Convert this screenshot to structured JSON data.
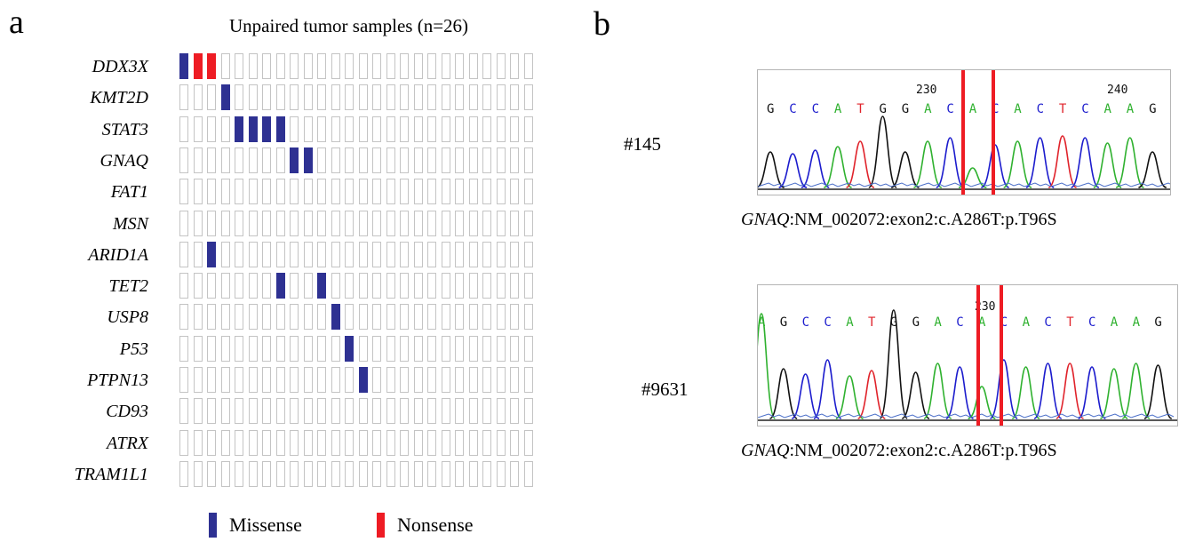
{
  "panel_a": {
    "letter": "a",
    "title": "Unpaired tumor samples (n=26)",
    "sample_count": 26,
    "genes": [
      "DDX3X",
      "KMT2D",
      "STAT3",
      "GNAQ",
      "FAT1",
      "MSN",
      "ARID1A",
      "TET2",
      "USP8",
      "P53",
      "PTPN13",
      "CD93",
      "ATRX",
      "TRAM1L1"
    ],
    "mutations": [
      {
        "gene": "DDX3X",
        "sample": 1,
        "type": "Missense"
      },
      {
        "gene": "DDX3X",
        "sample": 2,
        "type": "Nonsense"
      },
      {
        "gene": "DDX3X",
        "sample": 3,
        "type": "Nonsense"
      },
      {
        "gene": "KMT2D",
        "sample": 4,
        "type": "Missense"
      },
      {
        "gene": "STAT3",
        "sample": 5,
        "type": "Missense"
      },
      {
        "gene": "STAT3",
        "sample": 6,
        "type": "Missense"
      },
      {
        "gene": "STAT3",
        "sample": 7,
        "type": "Missense"
      },
      {
        "gene": "STAT3",
        "sample": 8,
        "type": "Missense"
      },
      {
        "gene": "GNAQ",
        "sample": 9,
        "type": "Missense"
      },
      {
        "gene": "GNAQ",
        "sample": 10,
        "type": "Missense"
      },
      {
        "gene": "ARID1A",
        "sample": 3,
        "type": "Missense"
      },
      {
        "gene": "TET2",
        "sample": 8,
        "type": "Missense"
      },
      {
        "gene": "TET2",
        "sample": 11,
        "type": "Missense"
      },
      {
        "gene": "USP8",
        "sample": 12,
        "type": "Missense"
      },
      {
        "gene": "P53",
        "sample": 13,
        "type": "Missense"
      },
      {
        "gene": "PTPN13",
        "sample": 14,
        "type": "Missense"
      }
    ],
    "legend": [
      {
        "label": "Missense",
        "color": "#2e3192"
      },
      {
        "label": "Nonsense",
        "color": "#ee1c24"
      }
    ],
    "empty_cell_border_color": "#c4c4c4"
  },
  "panel_b": {
    "letter": "b",
    "traces": [
      {
        "sample_id": "#145",
        "bases": "GCCATGGACACACTCAAG",
        "position_labels": [
          "230",
          "240"
        ],
        "caption_gene": "GNAQ",
        "caption_rest": ":NM_002072:exon2:c.A286T:p.T96S"
      },
      {
        "sample_id": "#9631",
        "bases": "AGCCATGGACACACTCAAG",
        "position_labels": [
          "230"
        ],
        "caption_gene": "GNAQ",
        "caption_rest": ":NM_002072:exon2:c.A286T:p.T96S"
      }
    ],
    "highlight_color": "#ee1c24",
    "base_colors": {
      "A": "#2fb12f",
      "C": "#1c1ccd",
      "G": "#111111",
      "T": "#e0232b"
    }
  }
}
